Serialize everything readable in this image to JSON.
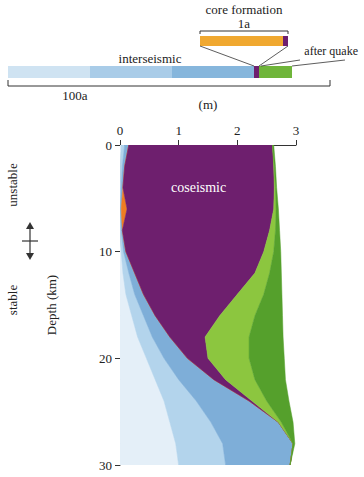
{
  "chart_data": {
    "type": "area",
    "orientation": "horizontal",
    "stacked": true,
    "x_label": "(m)",
    "y_label": "Depth (km)",
    "y": [
      0,
      2,
      4,
      6,
      8,
      10,
      12,
      14,
      16,
      18,
      20,
      22,
      24,
      26,
      28,
      30
    ],
    "xlim": [
      0,
      3
    ],
    "xticks": [
      0,
      1,
      2,
      3
    ],
    "ylim": [
      30,
      0
    ],
    "yticks": [
      0,
      10,
      20,
      30
    ],
    "grid": false,
    "series": [
      {
        "color": "#e4eff8",
        "values": [
          0.02,
          0.01,
          0,
          0,
          0,
          0.02,
          0.05,
          0.1,
          0.2,
          0.3,
          0.45,
          0.6,
          0.75,
          0.85,
          0.95,
          1.0
        ]
      },
      {
        "color": "#b3d4ec",
        "values": [
          0.06,
          0.03,
          0.02,
          0.01,
          0.02,
          0.04,
          0.1,
          0.15,
          0.2,
          0.25,
          0.3,
          0.4,
          0.55,
          0.7,
          0.8,
          0.8
        ]
      },
      {
        "color": "#7eaed8",
        "values": [
          0.07,
          0.04,
          0.03,
          0.01,
          0.02,
          0.04,
          0.1,
          0.15,
          0.2,
          0.3,
          0.4,
          0.6,
          0.9,
          1.15,
          1.2,
          1.1
        ]
      },
      {
        "color": "#ef7d22",
        "values": [
          0,
          0,
          0,
          0.1,
          0,
          0,
          0,
          0,
          0,
          0,
          0,
          0,
          0,
          0,
          0,
          0
        ]
      },
      {
        "name": "coseismic",
        "color": "#6e1f6e",
        "values": [
          2.45,
          2.54,
          2.58,
          2.5,
          2.51,
          2.35,
          2.05,
          1.6,
          1.1,
          0.6,
          0.35,
          0.2,
          0.05,
          0,
          0,
          0
        ]
      },
      {
        "color": "#8cc63f",
        "values": [
          0,
          0.01,
          0.02,
          0.04,
          0.1,
          0.17,
          0.25,
          0.45,
          0.6,
          0.75,
          0.7,
          0.5,
          0.25,
          0.05,
          0,
          0
        ]
      },
      {
        "color": "#55a02c",
        "values": [
          0.02,
          0.02,
          0.02,
          0.04,
          0.07,
          0.12,
          0.2,
          0.31,
          0.47,
          0.58,
          0.6,
          0.52,
          0.38,
          0.2,
          0.03,
          0
        ]
      }
    ],
    "zones": [
      "unstable",
      "stable"
    ],
    "timeline": {
      "span": "100a",
      "phases": [
        {
          "name": "interseismic",
          "colors": [
            "#cfe3f2",
            "#a9cce8",
            "#86b6dc"
          ]
        },
        {
          "color": "#6e1f6e"
        },
        {
          "name": "after quake",
          "color": "#6fb53a"
        }
      ],
      "zoom": {
        "name": "core formation",
        "span": "1a",
        "colors": [
          "#f0a830",
          "#6e1f6e"
        ]
      }
    }
  }
}
